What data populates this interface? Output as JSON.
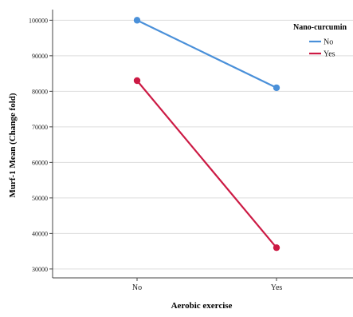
{
  "chart_data": {
    "type": "line",
    "xlabel": "Aerobic exercise",
    "ylabel": "Murf-1 Mean (Change fold)",
    "categories": [
      "No",
      "Yes"
    ],
    "y_ticks": [
      {
        "value": 30000,
        "label": "30000"
      },
      {
        "value": 40000,
        "label": "40000"
      },
      {
        "value": 50000,
        "label": "50000"
      },
      {
        "value": 60000,
        "label": "60000"
      },
      {
        "value": 70000,
        "label": "70000"
      },
      {
        "value": 80000,
        "label": "80000"
      },
      {
        "value": 90000,
        "label": "90000"
      },
      {
        "value": 100000,
        "label": "100000"
      }
    ],
    "ylim": [
      27500,
      103000
    ],
    "grid": true,
    "legend": {
      "title": "Nano-curcumin",
      "placement": "top-right"
    },
    "series": [
      {
        "name": "No",
        "color": "#4a90d9",
        "values": [
          100000,
          81000
        ]
      },
      {
        "name": "Yes",
        "color": "#cc1a44",
        "values": [
          83000,
          36000
        ]
      }
    ]
  }
}
